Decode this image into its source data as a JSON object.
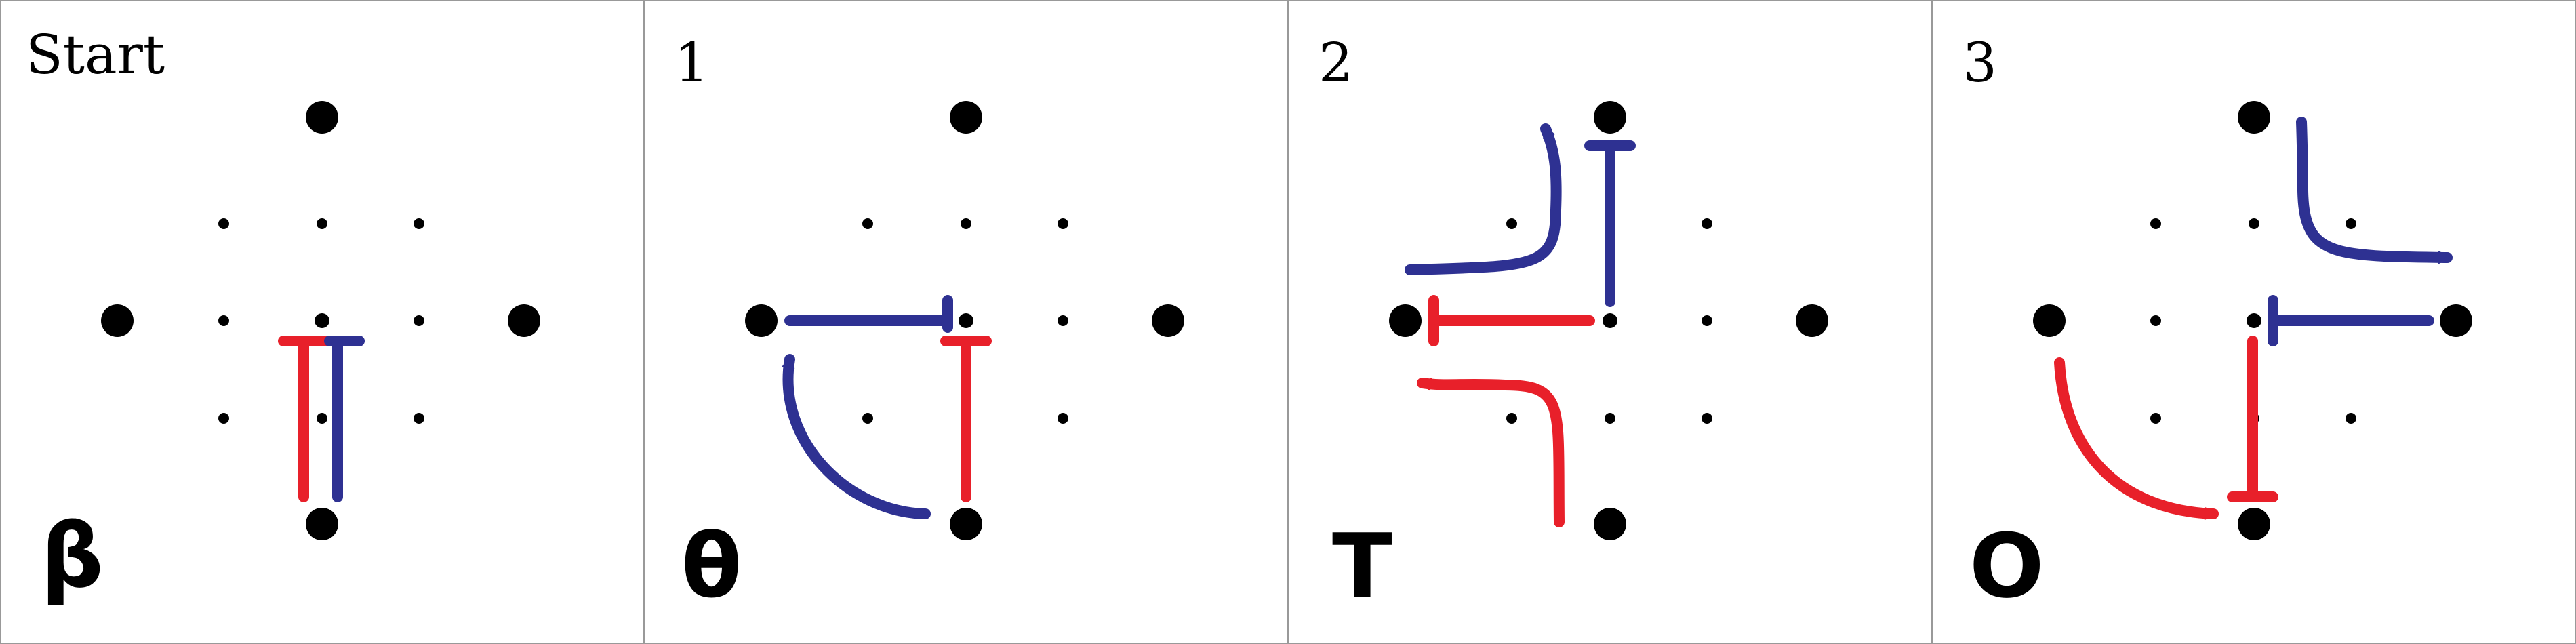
{
  "colors": {
    "red": "#E8202A",
    "blue": "#2E3192",
    "dot": "#000000",
    "border": "#999999"
  },
  "panels": [
    {
      "label": "Start",
      "symbol": "β"
    },
    {
      "label": "1",
      "symbol": "θ"
    },
    {
      "label": "2",
      "symbol": "T"
    },
    {
      "label": "3",
      "symbol": "O"
    }
  ]
}
